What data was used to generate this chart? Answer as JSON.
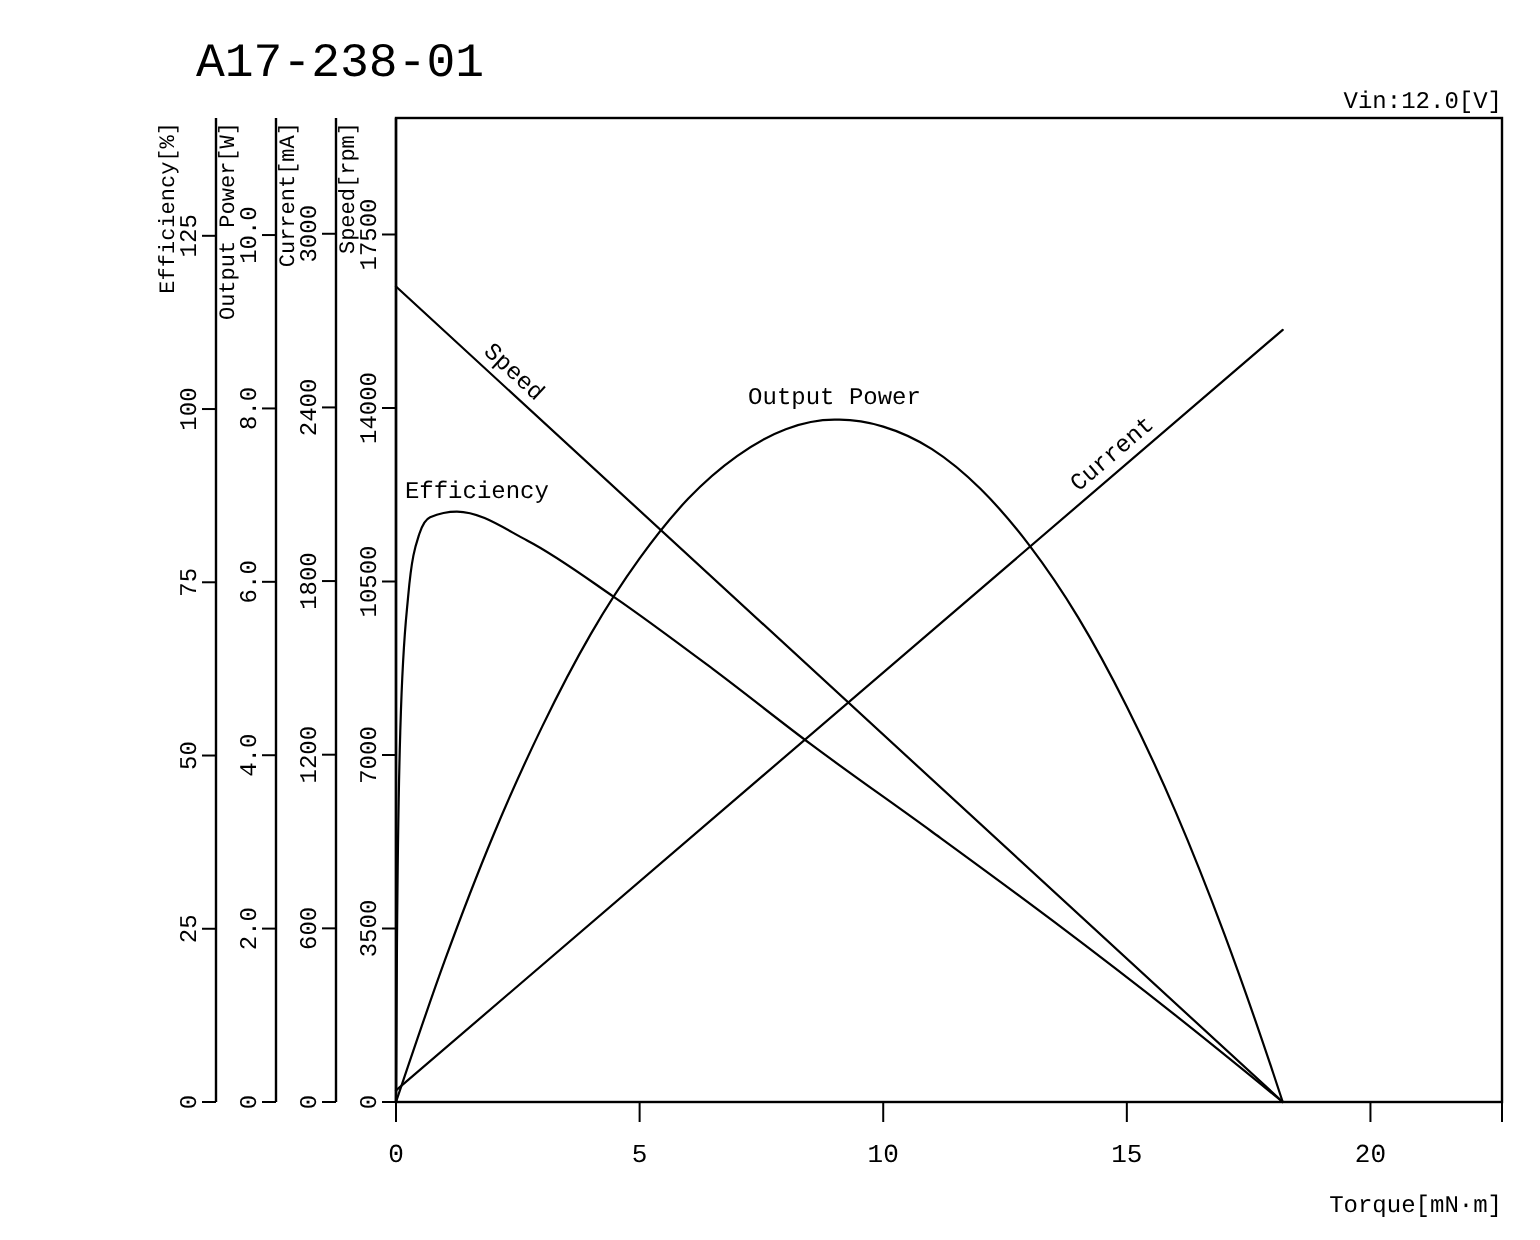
{
  "chart_data": [
    {
      "type": "line",
      "title": "A17-238-01",
      "annotations": [
        "Vin:12.0[V]"
      ],
      "xlabel": "Torque[mN·m]",
      "ylabel": "Speed[rpm]",
      "y2label": "Current[mA]",
      "xlim": [
        0,
        22.7
      ],
      "xticks": [
        0,
        5,
        10,
        15,
        20
      ],
      "ylim": [
        0,
        19850
      ],
      "yticks": [
        0,
        3500,
        7000,
        10500,
        14000,
        17500
      ],
      "y2lim": [
        0,
        3400
      ],
      "y2ticks": [
        0,
        600,
        1200,
        1800,
        2400,
        3000
      ],
      "series": [
        {
          "name": "Speed",
          "color": "#000000",
          "x": [
            0,
            18.2
          ],
          "values": [
            16450,
            0
          ]
        },
        {
          "name": "Current",
          "color": "#000000",
          "axis": "y2",
          "x": [
            0,
            18.2
          ],
          "values": [
            40,
            2668
          ]
        }
      ]
    },
    {
      "type": "line",
      "ylabel": "Output Power[W]",
      "xlim": [
        0,
        22.7
      ],
      "tick_labels": "y",
      "ylim": [
        0,
        11.35
      ],
      "yticks": [
        {
          "value": 0,
          "label": "0"
        },
        {
          "value": 2,
          "label": "2.0"
        },
        {
          "value": 4,
          "label": "4.0"
        },
        {
          "value": 6,
          "label": "6.0"
        },
        {
          "value": 8,
          "label": "8.0"
        },
        {
          "value": 10,
          "label": "10.0"
        }
      ],
      "series": [
        {
          "name": "Output Power",
          "color": "#000000",
          "x": [
            0,
            1,
            2,
            3,
            4,
            5,
            6,
            7,
            8,
            9,
            9.1,
            10,
            11,
            12,
            13,
            14,
            15,
            16,
            17,
            18,
            18.2
          ],
          "values": [
            0,
            1.63,
            3.08,
            4.33,
            5.4,
            6.27,
            6.96,
            7.45,
            7.76,
            7.87,
            7.87,
            7.79,
            7.53,
            7.07,
            6.42,
            5.59,
            4.56,
            3.35,
            1.94,
            0.34,
            0
          ]
        }
      ]
    },
    {
      "type": "line",
      "ylabel": "Efficiency[%]",
      "xlim": [
        0,
        22.7
      ],
      "tick_labels": "y",
      "ylim": [
        0,
        142
      ],
      "yticks": [
        0,
        25,
        50,
        75,
        100,
        125
      ],
      "series": [
        {
          "name": "Efficiency",
          "color": "#000000",
          "x": [
            0,
            0.02,
            0.09,
            0.25,
            0.48,
            0.7,
            1.25,
            2.7,
            4.47,
            6.5,
            8.52,
            11,
            13.47,
            16,
            18.2
          ],
          "values": [
            0,
            23,
            54,
            73,
            82,
            84.4,
            85.2,
            81,
            72.9,
            62.5,
            51.6,
            39,
            26.2,
            12.5,
            0
          ]
        }
      ]
    }
  ]
}
